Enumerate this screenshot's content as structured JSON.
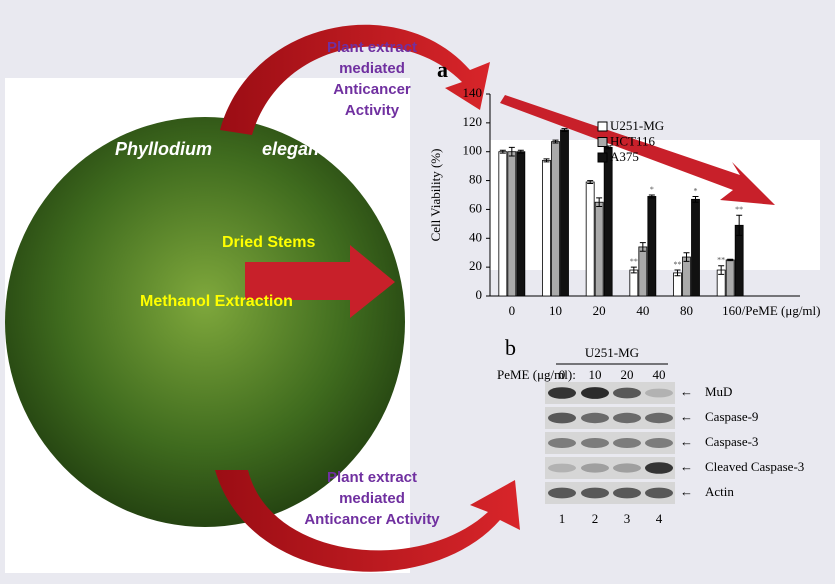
{
  "chart_data": {
    "type": "bar",
    "panel_label": "a",
    "y_label": "Cell Viability (%)",
    "categories": [
      "0",
      "10",
      "20",
      "40",
      "80",
      "160/PeME  (μg/ml)"
    ],
    "series": [
      {
        "name": "U251-MG",
        "color": "#ffffff",
        "values": [
          100,
          94,
          79,
          18,
          16,
          18
        ],
        "errors": [
          1,
          1,
          1,
          2,
          2,
          3
        ],
        "significance": [
          null,
          null,
          null,
          "**",
          "**",
          "**"
        ]
      },
      {
        "name": "HCT116",
        "color": "#aaaaaa",
        "values": [
          100,
          107,
          65,
          34,
          27,
          25
        ],
        "errors": [
          3,
          1,
          3,
          3,
          3,
          0.5
        ],
        "significance": [
          null,
          null,
          null,
          null,
          null,
          null
        ]
      },
      {
        "name": "A375",
        "color": "#111111",
        "values": [
          100,
          115,
          103,
          69,
          67,
          49
        ],
        "errors": [
          1,
          1,
          1,
          1,
          2,
          7
        ],
        "significance": [
          null,
          null,
          null,
          "*",
          "*",
          "**"
        ]
      }
    ],
    "ylim": [
      0,
      140
    ],
    "yticks": [
      0,
      20,
      40,
      60,
      80,
      100,
      120,
      140
    ]
  },
  "callout_top": [
    "Plant extract",
    "mediated",
    "Anticancer",
    "Activity"
  ],
  "callout_bottom": [
    "Plant extract",
    "mediated",
    "Anticancer Activity"
  ],
  "species": [
    "Phyllodium",
    "elegans"
  ],
  "steps": [
    "Dried Stems",
    "Methanol Extraction"
  ],
  "blot": {
    "panel_label": "b",
    "cell_line": "U251-MG",
    "dose_label": "PeME  (μg/ml):",
    "doses": [
      "0",
      "10",
      "20",
      "40"
    ],
    "proteins": [
      "MuD",
      "Caspase-9",
      "Caspase-3",
      "Cleaved Caspase-3",
      "Actin"
    ],
    "lanes": [
      "1",
      "2",
      "3",
      "4"
    ]
  }
}
